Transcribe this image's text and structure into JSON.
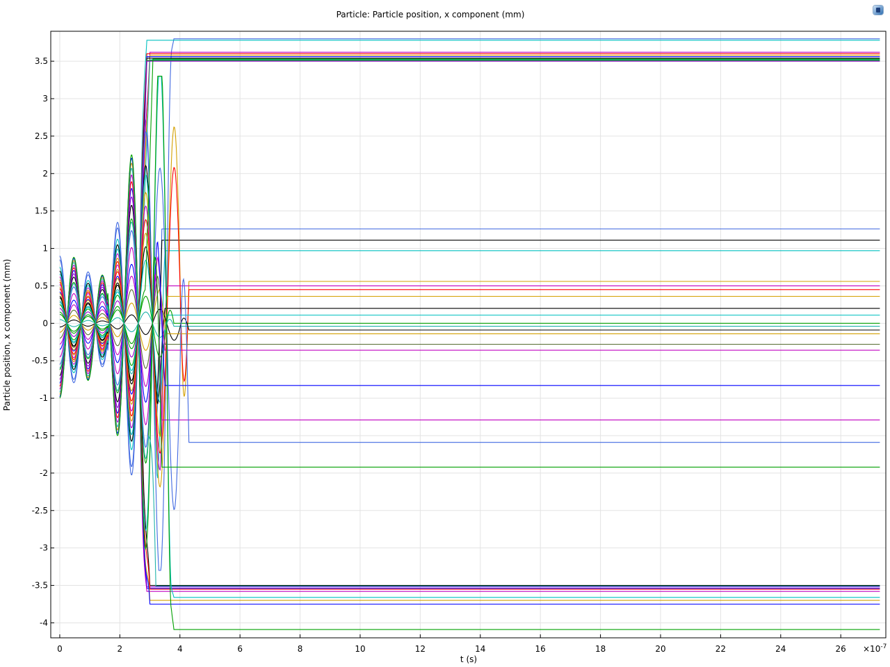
{
  "app_logo": "comsol-logo-icon",
  "chart_data": {
    "type": "line",
    "title": "Particle: Particle position, x component (mm)",
    "xlabel": "t (s)",
    "ylabel": "Particle position, x component (mm)",
    "x_multiplier": "×10",
    "x_exponent": "-7",
    "xlim": [
      -0.3,
      27.5
    ],
    "ylim": [
      -4.2,
      3.9
    ],
    "grid": true,
    "legend": "none",
    "x_ticks": [
      0,
      2,
      4,
      6,
      8,
      10,
      12,
      14,
      16,
      18,
      20,
      22,
      24,
      26
    ],
    "x_tick_labels": [
      "0",
      "2",
      "4",
      "6",
      "8",
      "10",
      "12",
      "14",
      "16",
      "18",
      "20",
      "22",
      "24",
      "26"
    ],
    "y_ticks": [
      -4,
      -3.5,
      -3,
      -2.5,
      -2,
      -1.5,
      -1,
      -0.5,
      0,
      0.5,
      1,
      1.5,
      2,
      2.5,
      3,
      3.5
    ],
    "y_tick_labels": [
      "-4",
      "-3.5",
      "-3",
      "-2.5",
      "-2",
      "-1.5",
      "-1",
      "-0.5",
      "0",
      "0.5",
      "1",
      "1.5",
      "2",
      "2.5",
      "3",
      "3.5"
    ],
    "oscillation_window": [
      0,
      4.3
    ],
    "end_time": 27.3,
    "colors": [
      "#0000ff",
      "#00a000",
      "#ff0000",
      "#00c0c0",
      "#c000c0",
      "#d4a000",
      "#000000",
      "#4169e1",
      "#20b2aa",
      "#9400d3"
    ],
    "series": [
      {
        "start": 0.9,
        "final": 3.8,
        "color": "#4169e1",
        "t_settle": 3.8
      },
      {
        "start": 0.75,
        "final": 3.78,
        "color": "#00c0c0",
        "t_settle": 2.9
      },
      {
        "start": 0.62,
        "final": 3.62,
        "color": "#c000c0",
        "t_settle": 3.0
      },
      {
        "start": 0.55,
        "final": 3.6,
        "color": "#ff0000",
        "t_settle": 2.9
      },
      {
        "start": 0.48,
        "final": 3.58,
        "color": "#d4a000",
        "t_settle": 3.0
      },
      {
        "start": 0.42,
        "final": 3.56,
        "color": "#0000ff",
        "t_settle": 2.9
      },
      {
        "start": 0.36,
        "final": 3.54,
        "color": "#000000",
        "t_settle": 2.9
      },
      {
        "start": 0.3,
        "final": 3.52,
        "color": "#20b2aa",
        "t_settle": 3.0
      },
      {
        "start": 0.25,
        "final": 3.51,
        "color": "#00a000",
        "t_settle": 2.9
      },
      {
        "start": 0.2,
        "final": 3.5,
        "color": "#9400d3",
        "t_settle": 2.9
      },
      {
        "start": 0.85,
        "final": 1.26,
        "color": "#4169e1",
        "t_settle": 3.4
      },
      {
        "start": 0.7,
        "final": 1.11,
        "color": "#000000",
        "t_settle": 3.4
      },
      {
        "start": 0.66,
        "final": 0.97,
        "color": "#00c0c0",
        "t_settle": 3.5
      },
      {
        "start": 0.58,
        "final": 0.56,
        "color": "#d4a000",
        "t_settle": 4.3
      },
      {
        "start": 0.52,
        "final": 0.5,
        "color": "#c000c0",
        "t_settle": 3.6
      },
      {
        "start": 0.46,
        "final": 0.45,
        "color": "#ff0000",
        "t_settle": 4.3
      },
      {
        "start": 0.4,
        "final": 0.36,
        "color": "#d4a000",
        "t_settle": 3.6
      },
      {
        "start": 0.34,
        "final": 0.2,
        "color": "#000000",
        "t_settle": 3.5
      },
      {
        "start": 0.28,
        "final": 0.11,
        "color": "#00c0c0",
        "t_settle": 3.6
      },
      {
        "start": 0.12,
        "final": 0.0,
        "color": "#00a000",
        "t_settle": 3.8
      },
      {
        "start": 0.05,
        "final": -0.04,
        "color": "#20b2aa",
        "t_settle": 3.8
      },
      {
        "start": -0.05,
        "final": -0.09,
        "color": "#000000",
        "t_settle": 4.3
      },
      {
        "start": -0.12,
        "final": -0.14,
        "color": "#d4a000",
        "t_settle": 3.6
      },
      {
        "start": -0.2,
        "final": -0.28,
        "color": "#556b2f",
        "t_settle": 3.5
      },
      {
        "start": -0.28,
        "final": -0.36,
        "color": "#c000c0",
        "t_settle": 3.5
      },
      {
        "start": -0.35,
        "final": -0.83,
        "color": "#0000ff",
        "t_settle": 3.5
      },
      {
        "start": -0.45,
        "final": -1.29,
        "color": "#c000c0",
        "t_settle": 3.4
      },
      {
        "start": -0.55,
        "final": -1.59,
        "color": "#4169e1",
        "t_settle": 4.3
      },
      {
        "start": -0.62,
        "final": -1.92,
        "color": "#00a000",
        "t_settle": 3.4
      },
      {
        "start": -0.7,
        "final": -3.5,
        "color": "#000000",
        "t_settle": 3.0
      },
      {
        "start": -0.75,
        "final": -3.52,
        "color": "#9400d3",
        "t_settle": 2.9
      },
      {
        "start": -0.8,
        "final": -3.54,
        "color": "#0000ff",
        "t_settle": 2.9
      },
      {
        "start": -0.84,
        "final": -3.55,
        "color": "#ff0000",
        "t_settle": 3.0
      },
      {
        "start": -0.88,
        "final": -3.58,
        "color": "#c000c0",
        "t_settle": 2.9
      },
      {
        "start": -0.92,
        "final": -3.66,
        "color": "#00c0c0",
        "t_settle": 3.8
      },
      {
        "start": -0.95,
        "final": -3.7,
        "color": "#d4a000",
        "t_settle": 3.0
      },
      {
        "start": -0.98,
        "final": -3.75,
        "color": "#0000ff",
        "t_settle": 3.0
      },
      {
        "start": -1.0,
        "final": -4.09,
        "color": "#00a000",
        "t_settle": 3.8
      },
      {
        "start": 0.15,
        "final": 3.53,
        "color": "#00a000",
        "t_settle": 3.1
      },
      {
        "start": -0.6,
        "final": -3.51,
        "color": "#20b2aa",
        "t_settle": 3.2
      }
    ]
  }
}
